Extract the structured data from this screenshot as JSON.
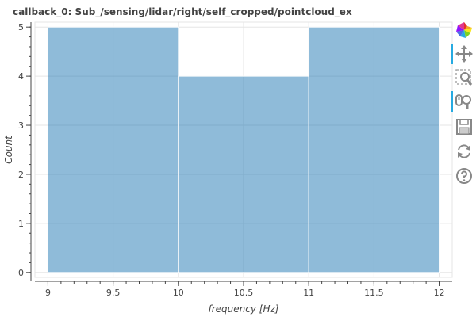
{
  "title": "callback_0: Sub_/sensing/lidar/right/self_cropped/pointcloud_ex",
  "colors": {
    "bar_fill": "#1f77b4",
    "bar_fill_alpha": 0.5,
    "bar_edge": "#ffffff",
    "grid": "#e5e5e5",
    "axis": "#444444",
    "active_tool": "#26aae1"
  },
  "chart_data": {
    "type": "bar",
    "title": "callback_0: Sub_/sensing/lidar/right/self_cropped/pointcloud_ex",
    "xlabel": "frequency [Hz]",
    "ylabel": "Count",
    "bins": [
      {
        "x0": 9,
        "x1": 10,
        "value": 5
      },
      {
        "x0": 10,
        "x1": 11,
        "value": 4
      },
      {
        "x0": 11,
        "x1": 12,
        "value": 5
      }
    ],
    "xlim": [
      8.9,
      12.1
    ],
    "ylim": [
      -0.1,
      5.1
    ],
    "xticks": [
      9,
      9.5,
      10,
      10.5,
      11,
      11.5,
      12
    ],
    "xtick_labels": [
      "9",
      "9.5",
      "10",
      "10.5",
      "11",
      "11.5",
      "12"
    ],
    "yticks": [
      0,
      1,
      2,
      3,
      4,
      5
    ],
    "ytick_labels": [
      "0",
      "1",
      "2",
      "3",
      "4",
      "5"
    ],
    "grid": true,
    "legend": "none"
  },
  "toolbar": {
    "tools": [
      {
        "name": "bokeh-logo-icon",
        "interactable": false,
        "active": false
      },
      {
        "name": "pan-tool-icon",
        "interactable": true,
        "active": true
      },
      {
        "name": "box-zoom-tool-icon",
        "interactable": true,
        "active": false
      },
      {
        "name": "wheel-zoom-tool-icon",
        "interactable": true,
        "active": true
      },
      {
        "name": "save-tool-icon",
        "interactable": true,
        "active": false
      },
      {
        "name": "reset-tool-icon",
        "interactable": true,
        "active": false
      },
      {
        "name": "help-tool-icon",
        "interactable": true,
        "active": false
      }
    ]
  }
}
